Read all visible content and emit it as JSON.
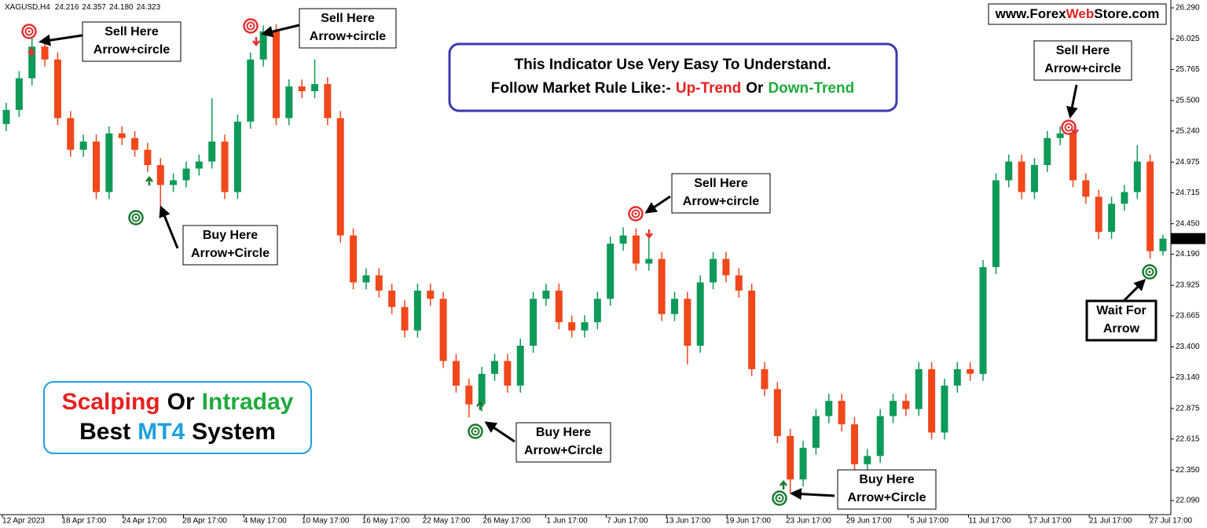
{
  "chart_data": {
    "type": "candlestick",
    "symbol": "XAGUSD,H4",
    "last_low_label": "24.180",
    "open": [
      25.3,
      25.42,
      25.69,
      25.96,
      25.85,
      25.35,
      25.08,
      25.15,
      24.72,
      25.22,
      25.18,
      25.08,
      24.95,
      24.78,
      24.82,
      24.92,
      24.98,
      25.15,
      24.72,
      25.32,
      25.85,
      26.09,
      25.35,
      25.62,
      25.58,
      25.64,
      25.35,
      24.35,
      23.95,
      24.01,
      23.88,
      23.74,
      23.54,
      23.88,
      23.81,
      23.28,
      23.07,
      22.91,
      23.17,
      23.28,
      23.07,
      23.41,
      23.81,
      23.88,
      23.61,
      23.54,
      23.61,
      23.81,
      24.28,
      24.35,
      24.11,
      24.15,
      23.68,
      23.81,
      23.41,
      23.95,
      24.15,
      24.01,
      23.88,
      23.21,
      23.04,
      22.64,
      22.27,
      22.54,
      22.81,
      22.94,
      22.74,
      22.4,
      22.47,
      22.81,
      22.94,
      22.87,
      23.21,
      22.67,
      23.07,
      23.21,
      23.17,
      24.08,
      24.82,
      24.98,
      24.72,
      24.95,
      25.18,
      25.22,
      24.82,
      24.68,
      24.38,
      24.62,
      24.72,
      24.98,
      24.216
    ],
    "high": [
      25.48,
      25.75,
      26.05,
      26.02,
      25.91,
      25.41,
      25.21,
      25.21,
      25.28,
      25.28,
      25.24,
      25.14,
      25.01,
      24.88,
      24.98,
      25.04,
      25.52,
      25.21,
      25.38,
      25.91,
      26.14,
      26.15,
      25.68,
      25.68,
      25.85,
      25.7,
      25.41,
      24.41,
      24.07,
      24.07,
      23.94,
      23.8,
      23.94,
      23.94,
      23.87,
      23.34,
      23.13,
      23.23,
      23.34,
      23.34,
      23.47,
      23.87,
      23.94,
      23.94,
      23.67,
      23.67,
      23.87,
      24.34,
      24.42,
      24.41,
      24.38,
      24.21,
      23.87,
      23.87,
      24.01,
      24.21,
      24.21,
      24.07,
      23.94,
      23.27,
      23.1,
      22.7,
      22.6,
      22.87,
      23.0,
      23.0,
      22.8,
      22.53,
      22.87,
      23.0,
      23.0,
      23.27,
      23.27,
      23.13,
      23.27,
      23.27,
      24.14,
      24.88,
      25.04,
      25.04,
      25.01,
      25.24,
      25.28,
      25.28,
      24.88,
      24.74,
      24.68,
      24.78,
      25.12,
      25.04,
      24.357
    ],
    "low": [
      25.24,
      25.36,
      25.63,
      25.79,
      25.29,
      25.02,
      25.02,
      24.66,
      24.66,
      25.12,
      25.02,
      24.89,
      24.6,
      24.72,
      24.76,
      24.86,
      24.92,
      24.66,
      24.66,
      25.26,
      25.79,
      25.29,
      25.29,
      25.52,
      25.52,
      25.29,
      24.29,
      23.89,
      23.89,
      23.82,
      23.68,
      23.48,
      23.48,
      23.75,
      23.22,
      23.01,
      22.8,
      22.85,
      23.11,
      23.01,
      23.01,
      23.35,
      23.75,
      23.55,
      23.48,
      23.48,
      23.55,
      23.75,
      24.22,
      24.05,
      24.05,
      23.62,
      23.62,
      23.25,
      23.35,
      23.89,
      23.95,
      23.82,
      23.15,
      22.98,
      22.58,
      22.15,
      22.21,
      22.48,
      22.75,
      22.68,
      22.34,
      22.34,
      22.41,
      22.75,
      22.81,
      22.81,
      22.61,
      22.61,
      23.01,
      23.11,
      23.11,
      24.02,
      24.76,
      24.66,
      24.66,
      24.89,
      25.12,
      24.76,
      24.62,
      24.32,
      24.32,
      24.56,
      24.66,
      24.15,
      24.18
    ],
    "close": [
      25.42,
      25.69,
      25.96,
      25.85,
      25.35,
      25.08,
      25.15,
      24.72,
      25.22,
      25.18,
      25.08,
      24.95,
      24.78,
      24.82,
      24.92,
      24.98,
      25.15,
      24.72,
      25.32,
      25.85,
      26.09,
      25.35,
      25.62,
      25.58,
      25.64,
      25.35,
      24.35,
      23.95,
      24.01,
      23.88,
      23.74,
      23.54,
      23.88,
      23.81,
      23.28,
      23.07,
      22.91,
      23.17,
      23.28,
      23.07,
      23.41,
      23.81,
      23.88,
      23.61,
      23.54,
      23.61,
      23.81,
      24.28,
      24.35,
      24.11,
      24.15,
      23.68,
      23.81,
      23.41,
      23.95,
      24.15,
      24.01,
      23.88,
      23.21,
      23.04,
      22.64,
      22.27,
      22.54,
      22.81,
      22.94,
      22.74,
      22.4,
      22.47,
      22.81,
      22.94,
      22.87,
      23.21,
      22.67,
      23.07,
      23.21,
      23.17,
      24.08,
      24.82,
      24.98,
      24.72,
      24.95,
      25.18,
      25.22,
      24.82,
      24.68,
      24.38,
      24.62,
      24.72,
      24.98,
      24.216,
      24.323
    ],
    "up_color": "#0e9a58",
    "down_color": "#f0471b",
    "ylim": [
      21.97,
      26.357
    ],
    "yticks": [
      {
        "value": 26.29,
        "label": "26.290"
      },
      26.025,
      25.765,
      {
        "value": 25.5,
        "label": "25.500"
      },
      {
        "value": 25.24,
        "label": "25.240"
      },
      24.975,
      24.715,
      {
        "value": 24.45,
        "label": "24.450"
      },
      {
        "value": 24.19,
        "label": "24.190"
      },
      23.925,
      23.665,
      {
        "value": 23.4,
        "label": "23.400"
      },
      {
        "value": 23.14,
        "label": "23.140"
      },
      22.875,
      22.615,
      {
        "value": 22.35,
        "label": "22.350"
      },
      {
        "value": 22.09,
        "label": "22.090"
      }
    ],
    "x_labels": [
      "12 Apr 2023",
      "18 Apr 17:00",
      "24 Apr 17:00",
      "28 Apr 17:00",
      "4 May 17:00",
      "10 May 17:00",
      "16 May 17:00",
      "22 May 17:00",
      "26 May 17:00",
      "1 Jun 17:00",
      "7 Jun 17:00",
      "13 Jun 17:00",
      "19 Jun 17:00",
      "23 Jun 17:00",
      "29 Jun 17:00",
      "5 Jul 17:00",
      "11 Jul 17:00",
      "17 Jul 17:00",
      "21 Jul 17:00",
      "27 Jul 17:00"
    ]
  },
  "watermark": {
    "prefix": "www.Forex",
    "highlight": "Web",
    "suffix": "Store.com"
  },
  "headline": {
    "line1": "This Indicator Use Very Easy To Understand.",
    "line2": "Follow Market Rule Like:-",
    "up": "Up-Trend",
    "or": "Or",
    "down": "Down-Trend"
  },
  "badge": {
    "w1": "Scalping",
    "w2": "Or",
    "w3": "Intraday",
    "w4": "Best",
    "w5": "MT4",
    "w6": "System"
  },
  "annotations": [
    {
      "lines": [
        "Sell Here",
        "Arrow+circle"
      ]
    },
    {
      "lines": [
        "Sell Here",
        "Arrow+circle"
      ]
    },
    {
      "lines": [
        "Buy Here",
        "Arrow+Circle"
      ]
    },
    {
      "lines": [
        "Sell Here",
        "Arrow+circle"
      ]
    },
    {
      "lines": [
        "Buy Here",
        "Arrow+Circle"
      ]
    },
    {
      "lines": [
        "Buy Here",
        "Arrow+Circle"
      ]
    },
    {
      "lines": [
        "Sell Here",
        "Arrow+circle"
      ]
    },
    {
      "lines": [
        "Wait For",
        "Arrow"
      ]
    }
  ]
}
